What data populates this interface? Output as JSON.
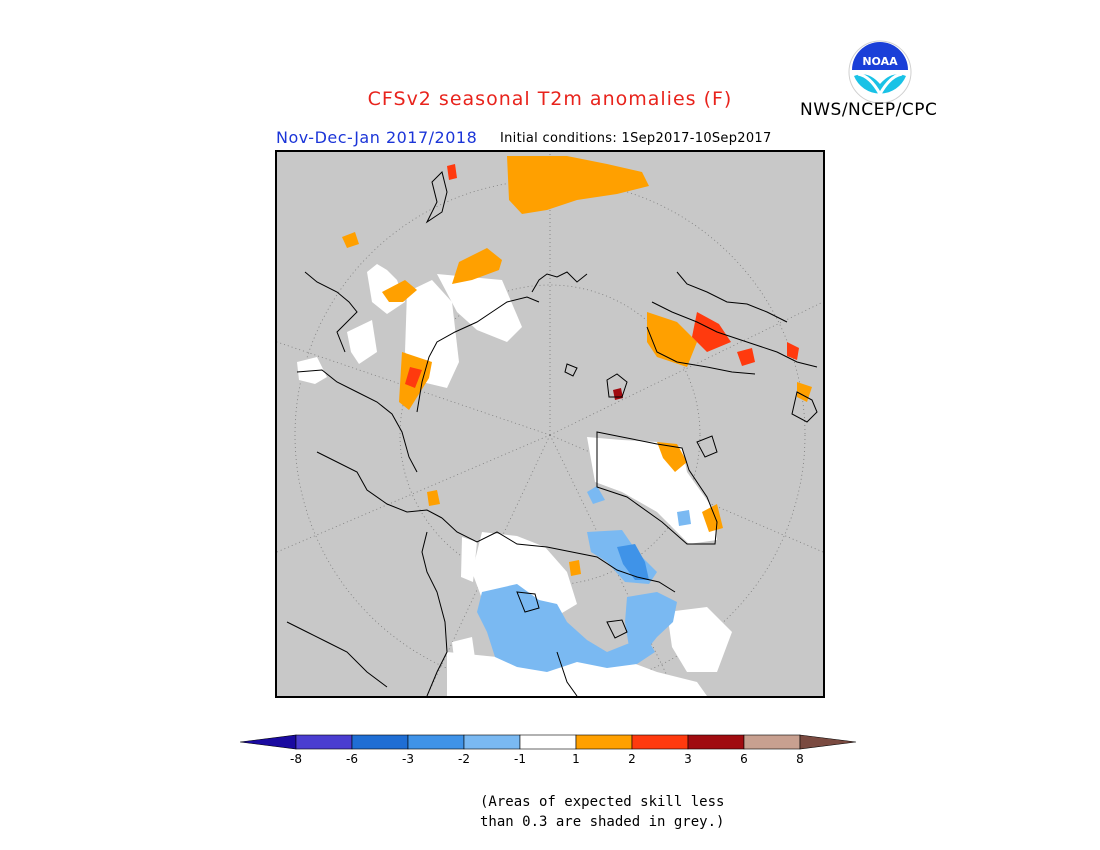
{
  "title": "CFSv2 seasonal T2m anomalies (F)",
  "agency": "NWS/NCEP/CPC",
  "logo": {
    "text": "NOAA",
    "icon": "noaa-logo-icon"
  },
  "season": "Nov-Dec-Jan 2017/2018",
  "initial_conditions": "Initial conditions: 1Sep2017-10Sep2017",
  "legend": {
    "ticks": [
      "-8",
      "-6",
      "-3",
      "-2",
      "-1",
      "1",
      "2",
      "3",
      "6",
      "8"
    ],
    "colors": [
      "#1a0aa0",
      "#4a3dd0",
      "#1f6ed4",
      "#3f93e8",
      "#7ab9f2",
      "#ffffff",
      "#ffa000",
      "#ff3a0e",
      "#a00b10",
      "#c8a090",
      "#7a4a40"
    ]
  },
  "note": [
    "(Areas of expected skill less",
    "than 0.3 are shaded in grey.)"
  ],
  "map": {
    "projection": "north polar stereographic",
    "background_color": "#c8c8c8"
  }
}
